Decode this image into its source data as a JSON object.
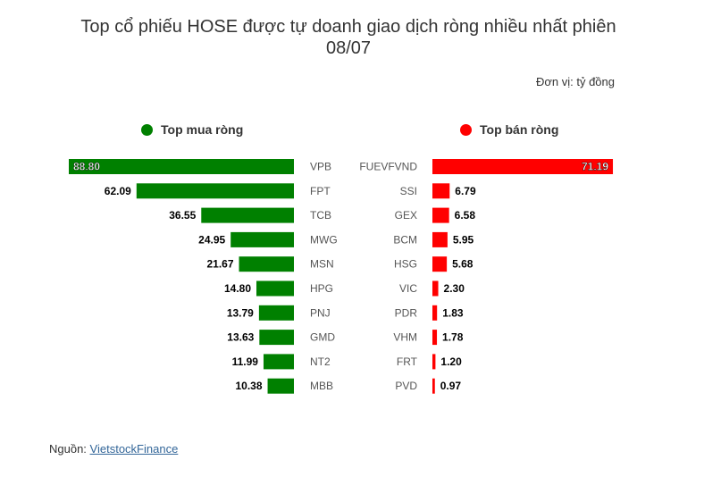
{
  "title_line1": "Top cổ phiếu HOSE được tự doanh giao dịch ròng nhiều nhất phiên",
  "title_line2": "08/07",
  "unit": "Đơn vị: tỷ đồng",
  "legend": {
    "buy": "Top mua ròng",
    "sell": "Top bán ròng"
  },
  "source": {
    "prefix": "Nguồn: ",
    "link": "VietstockFinance"
  },
  "colors": {
    "buy": "#008000",
    "sell": "#ff0000"
  },
  "chart_data": {
    "type": "bar",
    "title": "Top cổ phiếu HOSE được tự doanh giao dịch ròng nhiều nhất phiên 08/07",
    "series": [
      {
        "name": "Top mua ròng",
        "categories": [
          "VPB",
          "FPT",
          "TCB",
          "MWG",
          "MSN",
          "HPG",
          "PNJ",
          "GMD",
          "NT2",
          "MBB"
        ],
        "values": [
          88.8,
          62.09,
          36.55,
          24.95,
          21.67,
          14.8,
          13.79,
          13.63,
          11.99,
          10.38
        ]
      },
      {
        "name": "Top bán ròng",
        "categories": [
          "FUEVFVND",
          "SSI",
          "GEX",
          "BCM",
          "HSG",
          "VIC",
          "PDR",
          "VHM",
          "FRT",
          "PVD"
        ],
        "values": [
          71.19,
          6.79,
          6.58,
          5.95,
          5.68,
          2.3,
          1.83,
          1.78,
          1.2,
          0.97
        ]
      }
    ]
  }
}
